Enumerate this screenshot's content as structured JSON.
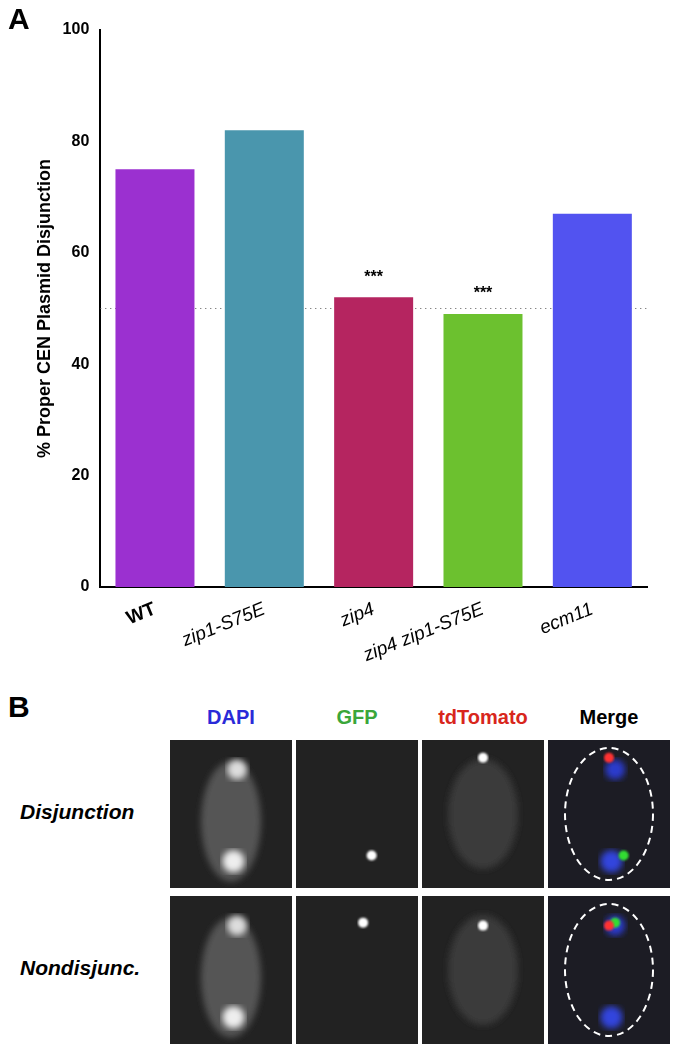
{
  "chart_data": {
    "type": "bar",
    "panel_label": "A",
    "y_label": "% Proper CEN Plasmid Disjunction",
    "categories": [
      "WT",
      "zip1-S75E",
      "zip4",
      "zip4 zip1-S75E",
      "ecm11"
    ],
    "values": [
      75,
      82,
      52,
      49,
      67
    ],
    "colors": [
      "#9b30d0",
      "#4a96ad",
      "#b52560",
      "#6cc12f",
      "#5253f0"
    ],
    "ylim": [
      0,
      100
    ],
    "yticks": [
      0,
      20,
      40,
      60,
      80,
      100
    ],
    "grid": false,
    "reference_line": 50,
    "annotations": [
      {
        "category": "zip4",
        "text": "***"
      },
      {
        "category": "zip4 zip1-S75E",
        "text": "***"
      }
    ]
  },
  "image_panel": {
    "label": "B",
    "columns": [
      {
        "text": "DAPI",
        "color": "#2a2ad8"
      },
      {
        "text": "GFP",
        "color": "#3aa63a"
      },
      {
        "text": "tdTomato",
        "color": "#d8261c"
      },
      {
        "text": "Merge",
        "color": "#000000"
      }
    ],
    "rows": [
      "Disjunction",
      "Nondisjunc."
    ]
  }
}
